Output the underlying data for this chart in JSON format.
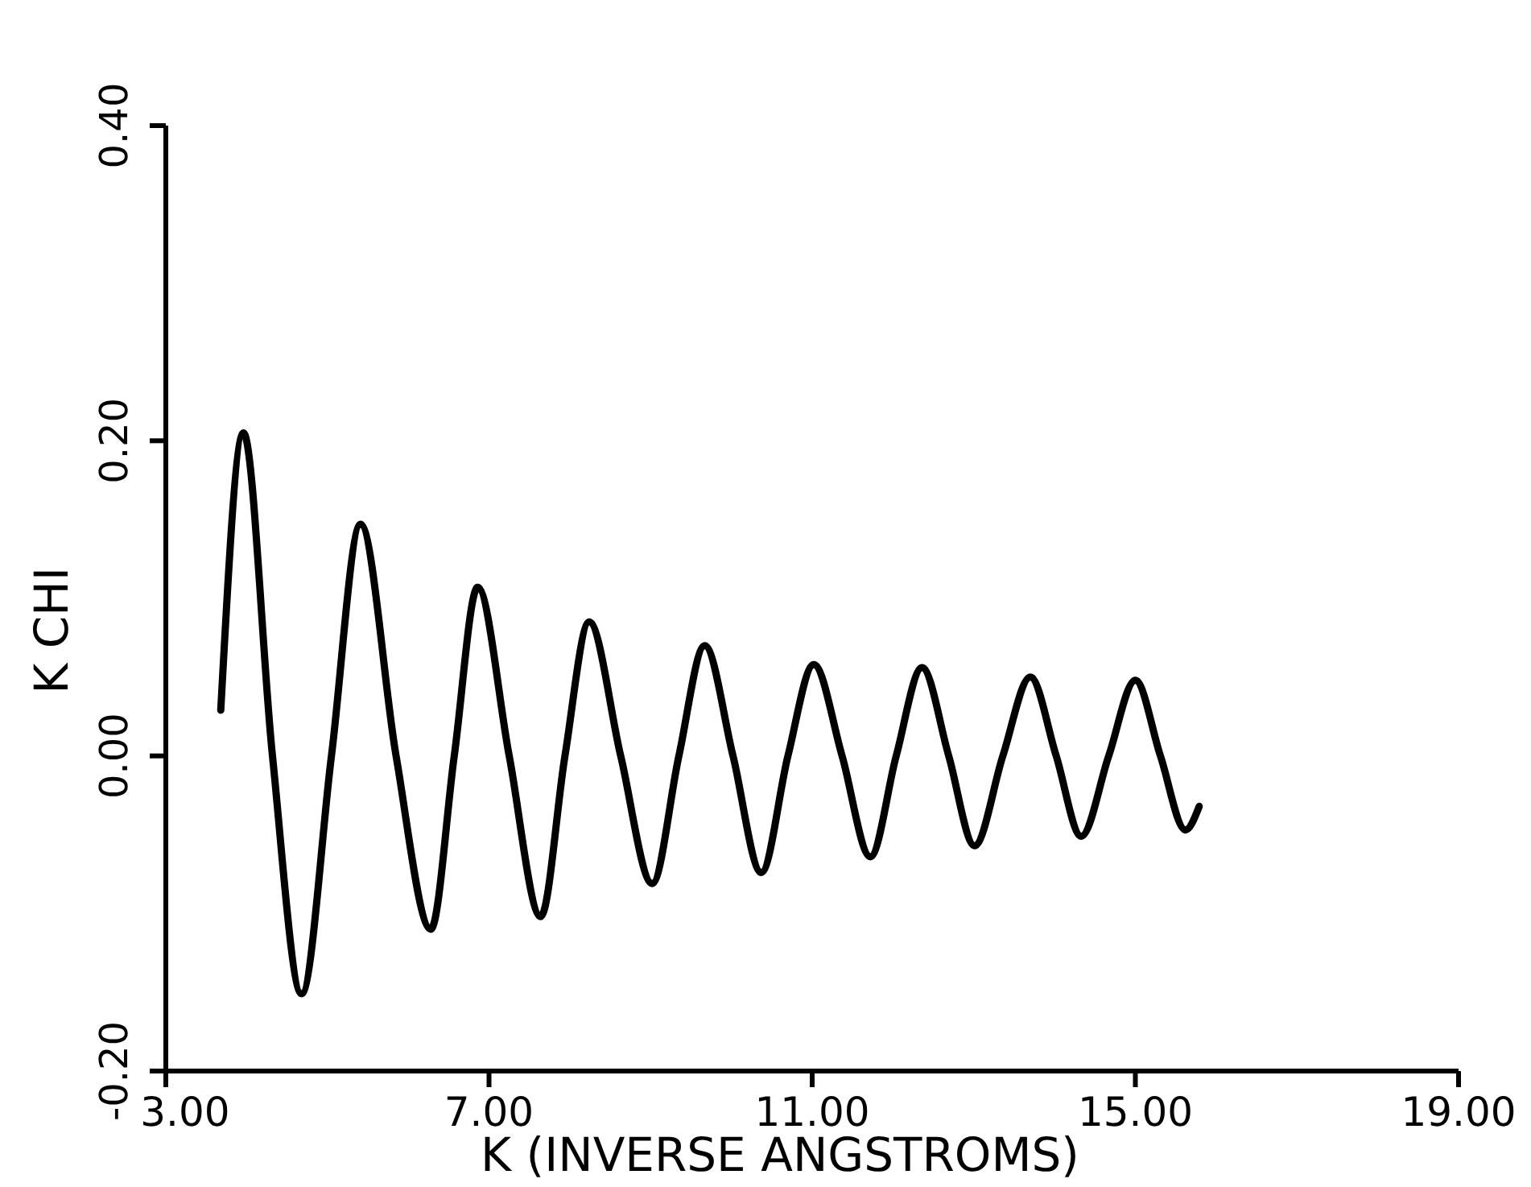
{
  "chart_data": {
    "type": "line",
    "xlabel": "K  (INVERSE ANGSTROMS)",
    "ylabel": "K CHI",
    "xlim": [
      3,
      19
    ],
    "xticks": [
      {
        "value": 3,
        "label": "3.00"
      },
      {
        "value": 7,
        "label": "7.00"
      },
      {
        "value": 11,
        "label": "11.00"
      },
      {
        "value": 15,
        "label": "15.00"
      },
      {
        "value": 19,
        "label": "19.00"
      }
    ],
    "ylim": [
      -0.2,
      0.4
    ],
    "yticks": [
      {
        "value": -0.2,
        "label": "-0.20"
      },
      {
        "value": 0,
        "label": "0.00"
      },
      {
        "value": 0.2,
        "label": "0.20"
      },
      {
        "value": 0.4,
        "label": "0.40"
      }
    ],
    "grid": false,
    "marker": "none",
    "line_style": "solid",
    "series": [
      {
        "color": "#000000",
        "x": [
          3.68,
          3.96,
          4.32,
          4.68,
          5.05,
          5.41,
          5.85,
          6.28,
          6.57,
          6.86,
          7.25,
          7.64,
          7.94,
          8.24,
          8.63,
          9.02,
          9.35,
          9.67,
          10.02,
          10.37,
          10.7,
          11.02,
          11.37,
          11.72,
          12.04,
          12.36,
          12.69,
          13.01,
          13.36,
          13.7,
          14.02,
          14.33,
          14.67,
          15.0,
          15.31,
          15.62,
          15.79
        ],
        "values": [
          0.029,
          0.205,
          0.0,
          -0.151,
          0.0,
          0.147,
          0.0,
          -0.11,
          0.0,
          0.107,
          0.0,
          -0.102,
          0.0,
          0.085,
          0.0,
          -0.081,
          0.0,
          0.07,
          0.0,
          -0.074,
          0.0,
          0.058,
          0.0,
          -0.064,
          0.0,
          0.056,
          0.0,
          -0.057,
          0.0,
          0.05,
          0.0,
          -0.051,
          0.0,
          0.048,
          0.0,
          -0.047,
          -0.032
        ]
      }
    ]
  }
}
